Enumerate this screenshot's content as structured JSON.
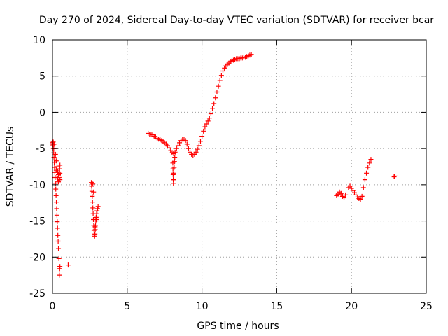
{
  "chart_data": {
    "type": "scatter",
    "title": "Day 270 of 2024, Sidereal Day-to-day VTEC variation (SDTVAR) for receiver bcar",
    "xlabel": "GPS time / hours",
    "ylabel": "SDTVAR / TECUs",
    "xlim": [
      0,
      25
    ],
    "ylim": [
      -25,
      10
    ],
    "xticks": [
      "0",
      "5",
      "10",
      "15",
      "20",
      "25"
    ],
    "yticks": [
      "10",
      "5",
      "0",
      "-5",
      "-10",
      "-15",
      "-20",
      "-25"
    ],
    "grid": true,
    "legend": "none",
    "marker": "plus",
    "color": "#ff0000",
    "series": [
      {
        "points": [
          [
            0.0,
            -4.2
          ],
          [
            0.03,
            -4.5
          ],
          [
            0.06,
            -5.0
          ],
          [
            0.08,
            -5.6
          ],
          [
            0.1,
            -6.2
          ],
          [
            0.12,
            -6.9
          ],
          [
            0.14,
            -7.6
          ],
          [
            0.16,
            -8.3
          ],
          [
            0.18,
            -9.0
          ],
          [
            0.2,
            -9.8
          ],
          [
            0.22,
            -10.6
          ],
          [
            0.24,
            -11.5
          ],
          [
            0.26,
            -12.4
          ],
          [
            0.28,
            -13.3
          ],
          [
            0.3,
            -14.2
          ],
          [
            0.32,
            -15.1
          ],
          [
            0.34,
            -16.0
          ],
          [
            0.36,
            -17.0
          ],
          [
            0.38,
            -17.8
          ],
          [
            0.4,
            -18.8
          ],
          [
            0.43,
            -20.2
          ],
          [
            0.45,
            -21.3
          ],
          [
            0.48,
            -21.6
          ],
          [
            0.5,
            -21.3
          ],
          [
            0.46,
            -22.5
          ],
          [
            1.05,
            -21.1
          ],
          [
            0.05,
            -4.1
          ],
          [
            0.1,
            -4.4
          ],
          [
            0.15,
            -5.0
          ],
          [
            0.2,
            -5.8
          ],
          [
            0.25,
            -6.7
          ],
          [
            0.3,
            -7.5
          ],
          [
            0.35,
            -8.2
          ],
          [
            0.4,
            -8.6
          ],
          [
            0.45,
            -8.4
          ],
          [
            0.48,
            -7.8
          ],
          [
            0.5,
            -7.3
          ],
          [
            0.52,
            -8.5
          ],
          [
            0.5,
            -9.3
          ],
          [
            0.44,
            -9.0
          ],
          [
            0.4,
            -9.6
          ],
          [
            0.35,
            -9.2
          ],
          [
            0.3,
            -8.8
          ],
          [
            0.25,
            -8.0
          ],
          [
            2.6,
            -9.7
          ],
          [
            2.62,
            -10.2
          ],
          [
            2.64,
            -10.9
          ],
          [
            2.66,
            -11.6
          ],
          [
            2.68,
            -12.4
          ],
          [
            2.7,
            -13.2
          ],
          [
            2.72,
            -14.0
          ],
          [
            2.74,
            -14.8
          ],
          [
            2.76,
            -15.6
          ],
          [
            2.78,
            -16.3
          ],
          [
            2.8,
            -16.9
          ],
          [
            2.82,
            -17.1
          ],
          [
            2.84,
            -16.8
          ],
          [
            2.86,
            -16.2
          ],
          [
            2.88,
            -15.6
          ],
          [
            2.9,
            -15.0
          ],
          [
            2.92,
            -14.5
          ],
          [
            2.95,
            -14.0
          ],
          [
            2.98,
            -13.6
          ],
          [
            3.02,
            -13.3
          ],
          [
            3.05,
            -13.0
          ],
          [
            2.7,
            -9.9
          ],
          [
            2.75,
            -11.0
          ],
          [
            2.85,
            -15.8
          ],
          [
            2.94,
            -14.8
          ],
          [
            6.4,
            -2.9
          ],
          [
            6.5,
            -3.0
          ],
          [
            6.6,
            -3.0
          ],
          [
            6.7,
            -3.1
          ],
          [
            6.8,
            -3.3
          ],
          [
            6.9,
            -3.4
          ],
          [
            7.0,
            -3.6
          ],
          [
            7.1,
            -3.7
          ],
          [
            7.2,
            -3.8
          ],
          [
            7.3,
            -3.9
          ],
          [
            7.4,
            -4.0
          ],
          [
            7.5,
            -4.2
          ],
          [
            7.6,
            -4.4
          ],
          [
            7.7,
            -4.6
          ],
          [
            7.8,
            -4.9
          ],
          [
            7.9,
            -5.3
          ],
          [
            8.0,
            -5.6
          ],
          [
            8.1,
            -5.7
          ],
          [
            8.2,
            -5.5
          ],
          [
            8.3,
            -5.0
          ],
          [
            8.4,
            -4.6
          ],
          [
            8.5,
            -4.2
          ],
          [
            8.6,
            -3.9
          ],
          [
            8.7,
            -3.7
          ],
          [
            8.8,
            -3.7
          ],
          [
            8.9,
            -3.9
          ],
          [
            9.0,
            -4.4
          ],
          [
            9.1,
            -5.0
          ],
          [
            9.2,
            -5.5
          ],
          [
            9.3,
            -5.8
          ],
          [
            9.4,
            -5.9
          ],
          [
            9.5,
            -5.8
          ],
          [
            9.6,
            -5.5
          ],
          [
            9.7,
            -5.1
          ],
          [
            9.8,
            -4.6
          ],
          [
            9.9,
            -4.0
          ],
          [
            10.0,
            -3.3
          ],
          [
            10.1,
            -2.6
          ],
          [
            10.2,
            -2.0
          ],
          [
            10.3,
            -1.6
          ],
          [
            10.4,
            -1.2
          ],
          [
            10.5,
            -0.8
          ],
          [
            10.6,
            -0.2
          ],
          [
            10.7,
            0.5
          ],
          [
            10.8,
            1.2
          ],
          [
            10.9,
            2.0
          ],
          [
            11.0,
            2.8
          ],
          [
            11.1,
            3.6
          ],
          [
            11.2,
            4.4
          ],
          [
            11.3,
            5.1
          ],
          [
            11.4,
            5.7
          ],
          [
            11.5,
            6.1
          ],
          [
            11.6,
            6.4
          ],
          [
            11.7,
            6.6
          ],
          [
            11.8,
            6.8
          ],
          [
            11.9,
            7.0
          ],
          [
            12.0,
            7.1
          ],
          [
            12.1,
            7.2
          ],
          [
            12.2,
            7.3
          ],
          [
            12.3,
            7.4
          ],
          [
            12.4,
            7.4
          ],
          [
            12.5,
            7.4
          ],
          [
            12.6,
            7.5
          ],
          [
            12.7,
            7.5
          ],
          [
            12.8,
            7.6
          ],
          [
            12.9,
            7.6
          ],
          [
            13.0,
            7.7
          ],
          [
            13.1,
            7.8
          ],
          [
            13.2,
            7.9
          ],
          [
            13.3,
            8.0
          ],
          [
            8.05,
            -7.0
          ],
          [
            8.06,
            -7.8
          ],
          [
            8.07,
            -8.6
          ],
          [
            8.08,
            -9.3
          ],
          [
            8.09,
            -9.8
          ],
          [
            8.1,
            -9.3
          ],
          [
            8.12,
            -8.4
          ],
          [
            8.14,
            -7.6
          ],
          [
            8.16,
            -6.8
          ],
          [
            8.18,
            -6.2
          ],
          [
            19.0,
            -11.5
          ],
          [
            19.1,
            -11.3
          ],
          [
            19.2,
            -11.0
          ],
          [
            19.3,
            -11.2
          ],
          [
            19.4,
            -11.6
          ],
          [
            19.5,
            -11.8
          ],
          [
            19.6,
            -11.4
          ],
          [
            19.8,
            -10.4
          ],
          [
            19.9,
            -10.2
          ],
          [
            20.0,
            -10.5
          ],
          [
            20.1,
            -10.8
          ],
          [
            20.2,
            -11.1
          ],
          [
            20.3,
            -11.4
          ],
          [
            20.4,
            -11.7
          ],
          [
            20.5,
            -11.9
          ],
          [
            20.6,
            -12.0
          ],
          [
            20.7,
            -11.6
          ],
          [
            20.8,
            -10.4
          ],
          [
            20.9,
            -9.3
          ],
          [
            21.0,
            -8.4
          ],
          [
            21.1,
            -7.6
          ],
          [
            21.2,
            -7.0
          ],
          [
            21.3,
            -6.5
          ],
          [
            22.85,
            -8.9
          ],
          [
            22.9,
            -8.8
          ]
        ]
      }
    ]
  }
}
